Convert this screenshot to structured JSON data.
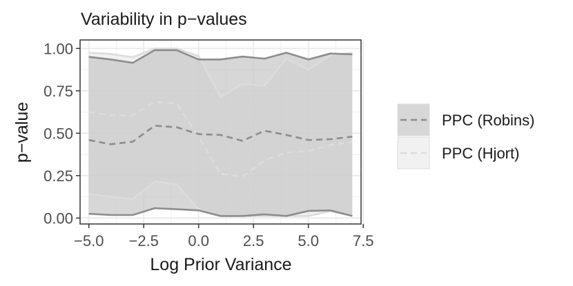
{
  "chart_data": {
    "type": "area",
    "title": "Variability in p−values",
    "xlabel": "Log Prior Variance",
    "ylabel": "p−value",
    "xlim": [
      -5.4,
      7.4
    ],
    "ylim": [
      -0.035,
      1.05
    ],
    "x_ticks": [
      -5,
      -2.5,
      0,
      2.5,
      5,
      7.5
    ],
    "x_tick_labels": [
      "−5.0",
      "−2.5",
      "0.0",
      "2.5",
      "5.0",
      "7.5"
    ],
    "y_ticks": [
      0,
      0.25,
      0.5,
      0.75,
      1
    ],
    "y_tick_labels": [
      "0.00",
      "0.25",
      "0.50",
      "0.75",
      "1.00"
    ],
    "grid": true,
    "legend_position": "right",
    "x": [
      -5,
      -4,
      -3,
      -2,
      -1,
      0,
      1,
      2,
      3,
      4,
      5,
      6,
      7
    ],
    "series": [
      {
        "name": "PPC (Robins)",
        "color": "#8c8c8c",
        "fill": "#c8c8c8",
        "median": [
          0.46,
          0.435,
          0.45,
          0.545,
          0.535,
          0.495,
          0.49,
          0.455,
          0.515,
          0.49,
          0.46,
          0.465,
          0.48
        ],
        "lower": [
          0.025,
          0.018,
          0.018,
          0.058,
          0.052,
          0.045,
          0.012,
          0.012,
          0.022,
          0.012,
          0.042,
          0.045,
          0.012
        ],
        "upper": [
          0.95,
          0.935,
          0.915,
          0.99,
          0.99,
          0.935,
          0.935,
          0.952,
          0.94,
          0.975,
          0.935,
          0.97,
          0.965
        ]
      },
      {
        "name": "PPC (Hjort)",
        "color": "#dcdcdc",
        "fill": "#e5e5e5",
        "median": [
          0.625,
          0.605,
          0.605,
          0.685,
          0.675,
          0.48,
          0.26,
          0.245,
          0.34,
          0.385,
          0.395,
          0.43,
          0.45
        ],
        "lower": [
          0.142,
          0.125,
          0.112,
          0.215,
          0.2,
          0.05,
          0.012,
          0.012,
          0.012,
          0.012,
          0.012,
          0.04,
          0.012
        ],
        "upper": [
          0.975,
          0.968,
          0.948,
          1.0,
          1.0,
          0.955,
          0.715,
          0.79,
          0.78,
          0.94,
          0.875,
          0.96,
          0.975
        ]
      }
    ]
  }
}
